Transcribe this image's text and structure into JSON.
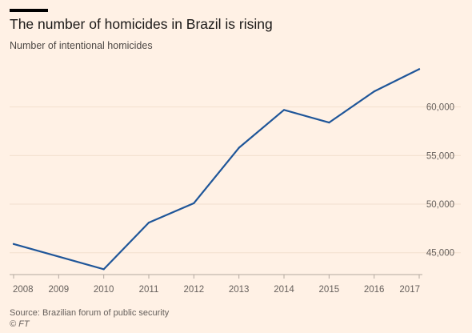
{
  "title": "The number of homicides in Brazil is rising",
  "subtitle": "Number of intentional homicides",
  "source": "Source: Brazilian forum of public security",
  "credit": "© FT",
  "colors": {
    "line": "#1f5699",
    "grid": "#f2dfce",
    "background": "#fff1e5"
  },
  "chart_data": {
    "type": "line",
    "title": "The number of homicides in Brazil is rising",
    "subtitle": "Number of intentional homicides",
    "xlabel": "",
    "ylabel": "",
    "x": [
      2008,
      2009,
      2010,
      2011,
      2012,
      2013,
      2014,
      2015,
      2016,
      2017
    ],
    "x_tick_labels": [
      "2008",
      "2009",
      "2010",
      "2011",
      "2012",
      "2013",
      "2014",
      "2015",
      "2016",
      "2017"
    ],
    "series": [
      {
        "values": [
          45900,
          44600,
          43300,
          48100,
          50100,
          55800,
          59700,
          58400,
          61600,
          63900
        ]
      }
    ],
    "y_ticks": [
      45000,
      50000,
      55000,
      60000
    ],
    "y_tick_labels": [
      "45,000",
      "50,000",
      "55,000",
      "60,000"
    ],
    "ylim": [
      43000,
      65000
    ],
    "xlim": [
      2008,
      2017
    ],
    "y_axis_position": "right",
    "grid": true
  }
}
